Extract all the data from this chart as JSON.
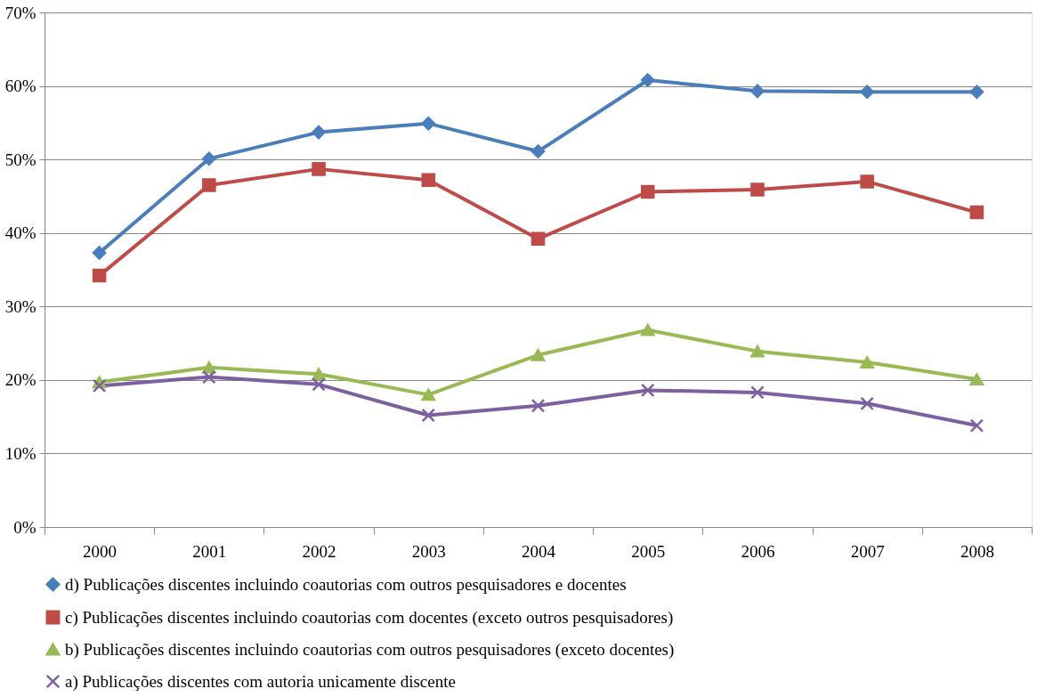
{
  "chart_data": {
    "type": "line",
    "categories": [
      "2000",
      "2001",
      "2002",
      "2003",
      "2004",
      "2005",
      "2006",
      "2007",
      "2008"
    ],
    "series": [
      {
        "name": "d) Publicações discentes incluindo coautorias com outros pesquisadores e docentes",
        "color": "#4a7ebb",
        "marker": "diamond",
        "values": [
          37.3,
          50.1,
          53.7,
          54.9,
          51.1,
          60.8,
          59.3,
          59.2,
          59.2
        ]
      },
      {
        "name": "c) Publicações discentes incluindo coautorias com docentes (exceto outros pesquisadores)",
        "color": "#be4b48",
        "marker": "square",
        "values": [
          34.2,
          46.5,
          48.7,
          47.2,
          39.2,
          45.6,
          45.9,
          47.0,
          42.8
        ]
      },
      {
        "name": "b) Publicações discentes incluindo coautorias com outros pesquisadores (exceto docentes)",
        "color": "#98b954",
        "marker": "triangle",
        "values": [
          19.7,
          21.7,
          20.8,
          18.0,
          23.4,
          26.8,
          23.9,
          22.4,
          20.1
        ]
      },
      {
        "name": "a) Publicações discentes com autoria unicamente discente",
        "color": "#7d60a0",
        "marker": "cross",
        "values": [
          19.2,
          20.4,
          19.4,
          15.2,
          16.5,
          18.6,
          18.3,
          16.8,
          13.8
        ]
      }
    ],
    "ylim": [
      0,
      70
    ],
    "yticks": [
      {
        "value": 0,
        "label": "0%"
      },
      {
        "value": 10,
        "label": "10%"
      },
      {
        "value": 20,
        "label": "20%"
      },
      {
        "value": 30,
        "label": "30%"
      },
      {
        "value": 40,
        "label": "40%"
      },
      {
        "value": 50,
        "label": "50%"
      },
      {
        "value": 60,
        "label": "60%"
      },
      {
        "value": 70,
        "label": "70%"
      }
    ],
    "grid": "y",
    "legend": "bottom",
    "line_style": "solid"
  }
}
